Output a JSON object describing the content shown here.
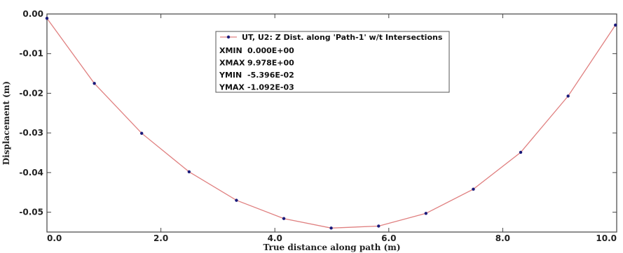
{
  "chart_data": {
    "type": "line",
    "xlabel": "True distance along path (m)",
    "ylabel": "Displacement (m)",
    "xlim": [
      0,
      10
    ],
    "ylim": [
      -0.055,
      0
    ],
    "x_ticks": [
      0,
      2,
      4,
      6,
      8,
      10
    ],
    "x_tick_labels": [
      "0.0",
      "2.0",
      "4.0",
      "6.0",
      "8.0",
      "10.0"
    ],
    "y_ticks": [
      0,
      -0.01,
      -0.02,
      -0.03,
      -0.04,
      -0.05
    ],
    "y_tick_labels": [
      "0.00",
      "-0.01",
      "-0.02",
      "-0.03",
      "-0.04",
      "-0.05"
    ],
    "grid": false,
    "legend_placement": "top-center",
    "line_color": "#e08080",
    "marker_color": "#1a1a7a",
    "series": [
      {
        "name": "UT, U2: Z Dist. along 'Path-1' w/t Intersections",
        "x": [
          0.0,
          0.832,
          1.663,
          2.495,
          3.326,
          4.158,
          4.989,
          5.821,
          6.652,
          7.484,
          8.315,
          9.147,
          9.978
        ],
        "y": [
          -0.0011,
          -0.0175,
          -0.0301,
          -0.0398,
          -0.047,
          -0.0516,
          -0.054,
          -0.0535,
          -0.0503,
          -0.0442,
          -0.0349,
          -0.0207,
          -0.0028
        ]
      }
    ],
    "legend_stats": [
      {
        "label": "XMIN",
        "value": "0.000E+00"
      },
      {
        "label": "XMAX",
        "value": "9.978E+00"
      },
      {
        "label": "YMIN",
        "value": "-5.396E-02"
      },
      {
        "label": "YMAX",
        "value": "-1.092E-03"
      }
    ]
  }
}
